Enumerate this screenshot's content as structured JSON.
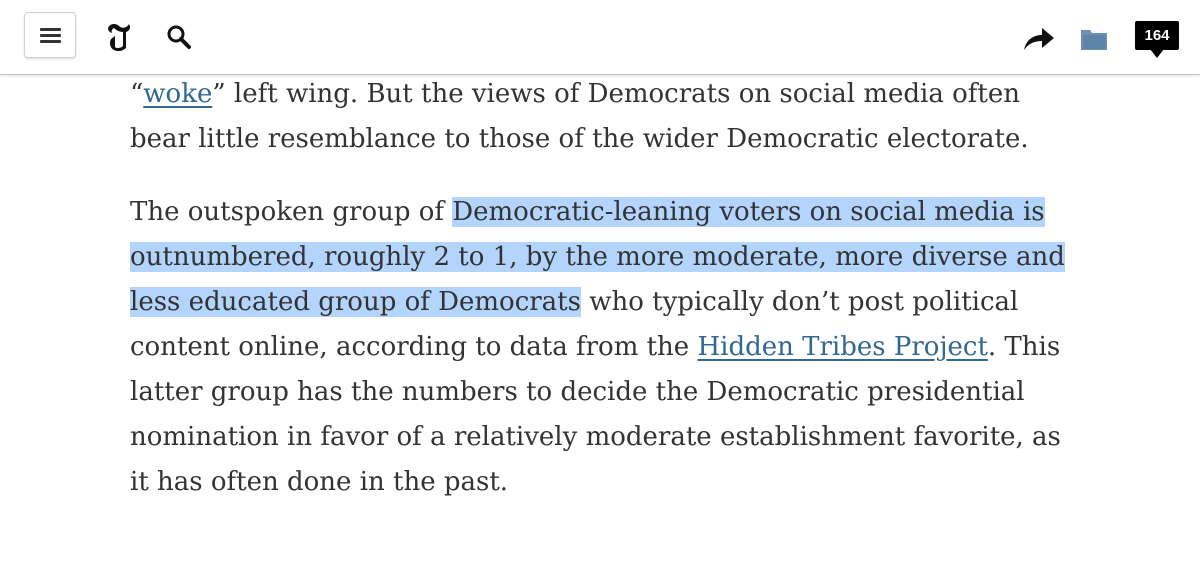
{
  "header": {
    "menu_icon": "hamburger-menu-icon",
    "logo_icon": "nyt-t-logo-icon",
    "search_icon": "search-icon",
    "share_icon": "share-arrow-icon",
    "saved_icon": "folder-icon",
    "comments_count": "164",
    "accent_color": "#326891"
  },
  "article": {
    "p1": {
      "quote_open": "“",
      "link_text": "woke",
      "rest": "” left wing. But the views of Democrats on social media often bear little resemblance to those of the wider Democratic electorate."
    },
    "p2": {
      "before_highlight": "The outspoken group of ",
      "highlight": "Democratic-leaning voters on social media is outnumbered, roughly 2 to 1, by the more moderate, more diverse and less educated group of Democrats",
      "after_highlight": " who typically don’t post political content online, according to data from the ",
      "link_text": "Hidden Tribes Project",
      "rest": ". This latter group has the numbers to decide the Democratic presidential nomination in favor of a relatively moderate establishment favorite, as it has often done in the past."
    },
    "highlight_color": "#b3d4fc"
  }
}
